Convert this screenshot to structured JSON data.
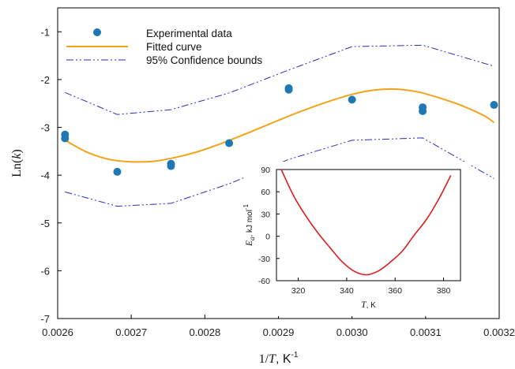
{
  "colors": {
    "points": "#1f77b4",
    "fit": "#f5a21b",
    "bounds": "#2a2acb",
    "inset_curve": "#e01b1b",
    "axis": "#000000"
  },
  "chart_data": [
    {
      "type": "scatter",
      "xlabel": {
        "prefix": "1/",
        "var": "T",
        "unit": ", K",
        "sup": "-1"
      },
      "ylabel": {
        "prefix": "Ln(",
        "var": "k",
        "suffix": ")"
      },
      "xlim": [
        0.0026,
        0.0032
      ],
      "ylim": [
        -7,
        -0.5
      ],
      "x_ticks": [
        0.0026,
        0.0027,
        0.0028,
        0.0029,
        0.003,
        0.0031,
        0.0032
      ],
      "x_tick_labels": [
        "0.0026",
        "0.0027",
        "0.0028",
        "0.0029",
        "0.0030",
        "0.0031",
        "0.0032"
      ],
      "y_ticks": [
        -7,
        -6,
        -5,
        -4,
        -3,
        -2,
        -1
      ],
      "y_tick_labels": [
        "-7",
        "-6",
        "-5",
        "-4",
        "-3",
        "-2",
        "-1"
      ],
      "legend": {
        "placement": "top-center",
        "entries": [
          "Experimental data",
          "Fitted curve",
          "95% Confidence bounds"
        ]
      },
      "series": [
        {
          "name": "Experimental data",
          "kind": "points",
          "x": [
            0.00261,
            0.00261,
            0.002681,
            0.002754,
            0.002754,
            0.002833,
            0.002914,
            0.002914,
            0.003,
            0.003096,
            0.003096,
            0.003193
          ],
          "y": [
            -3.15,
            -3.23,
            -3.93,
            -3.76,
            -3.81,
            -3.33,
            -2.18,
            -2.21,
            -2.42,
            -2.58,
            -2.66,
            -2.53
          ]
        },
        {
          "name": "Fitted curve",
          "kind": "curve",
          "x": [
            0.00261,
            0.00264,
            0.00267,
            0.0027,
            0.00273,
            0.00276,
            0.00279,
            0.00282,
            0.00285,
            0.00288,
            0.00291,
            0.00294,
            0.00297,
            0.003,
            0.00303,
            0.00306,
            0.00309,
            0.00312,
            0.00315,
            0.00318,
            0.003193
          ],
          "y": [
            -3.27,
            -3.52,
            -3.67,
            -3.72,
            -3.71,
            -3.63,
            -3.51,
            -3.35,
            -3.17,
            -2.98,
            -2.79,
            -2.61,
            -2.45,
            -2.31,
            -2.22,
            -2.2,
            -2.26,
            -2.39,
            -2.55,
            -2.76,
            -2.9
          ]
        },
        {
          "name": "95% Confidence bounds",
          "kind": "bound",
          "x": [
            0.00261,
            0.002681,
            0.002754,
            0.002833,
            0.002914,
            0.003,
            0.003096,
            0.003193
          ],
          "y": [
            -2.27,
            -2.73,
            -2.63,
            -2.28,
            -1.8,
            -1.31,
            -1.28,
            -1.72
          ]
        },
        {
          "name": "95% Confidence bounds",
          "kind": "bound",
          "x": [
            0.00261,
            0.002681,
            0.002754,
            0.002833,
            0.002914,
            0.003,
            0.003096,
            0.003193
          ],
          "y": [
            -4.35,
            -4.65,
            -4.59,
            -4.18,
            -3.67,
            -3.27,
            -3.22,
            -4.07
          ]
        }
      ]
    },
    {
      "type": "line",
      "inset": true,
      "xlabel": {
        "var": "T",
        "unit": ", K"
      },
      "ylabel": {
        "var": "E",
        "sub": "a",
        "unit": ", kJ mol",
        "sup": "-1"
      },
      "xlim": [
        311,
        387
      ],
      "ylim": [
        -60,
        90
      ],
      "x_ticks": [
        320,
        340,
        360,
        380
      ],
      "x_tick_labels": [
        "320",
        "340",
        "360",
        "380"
      ],
      "y_ticks": [
        -60,
        -30,
        0,
        30,
        60,
        90
      ],
      "y_tick_labels": [
        "-60",
        "-30",
        "0",
        "30",
        "60",
        "90"
      ],
      "series": [
        {
          "x": [
            313,
            318,
            323,
            328,
            333,
            338,
            343,
            348,
            353,
            358,
            363,
            368,
            373,
            378,
            383
          ],
          "y": [
            90,
            55,
            28,
            5,
            -15,
            -34,
            -47,
            -52,
            -47,
            -35,
            -20,
            2,
            23,
            50,
            82
          ]
        }
      ]
    }
  ]
}
